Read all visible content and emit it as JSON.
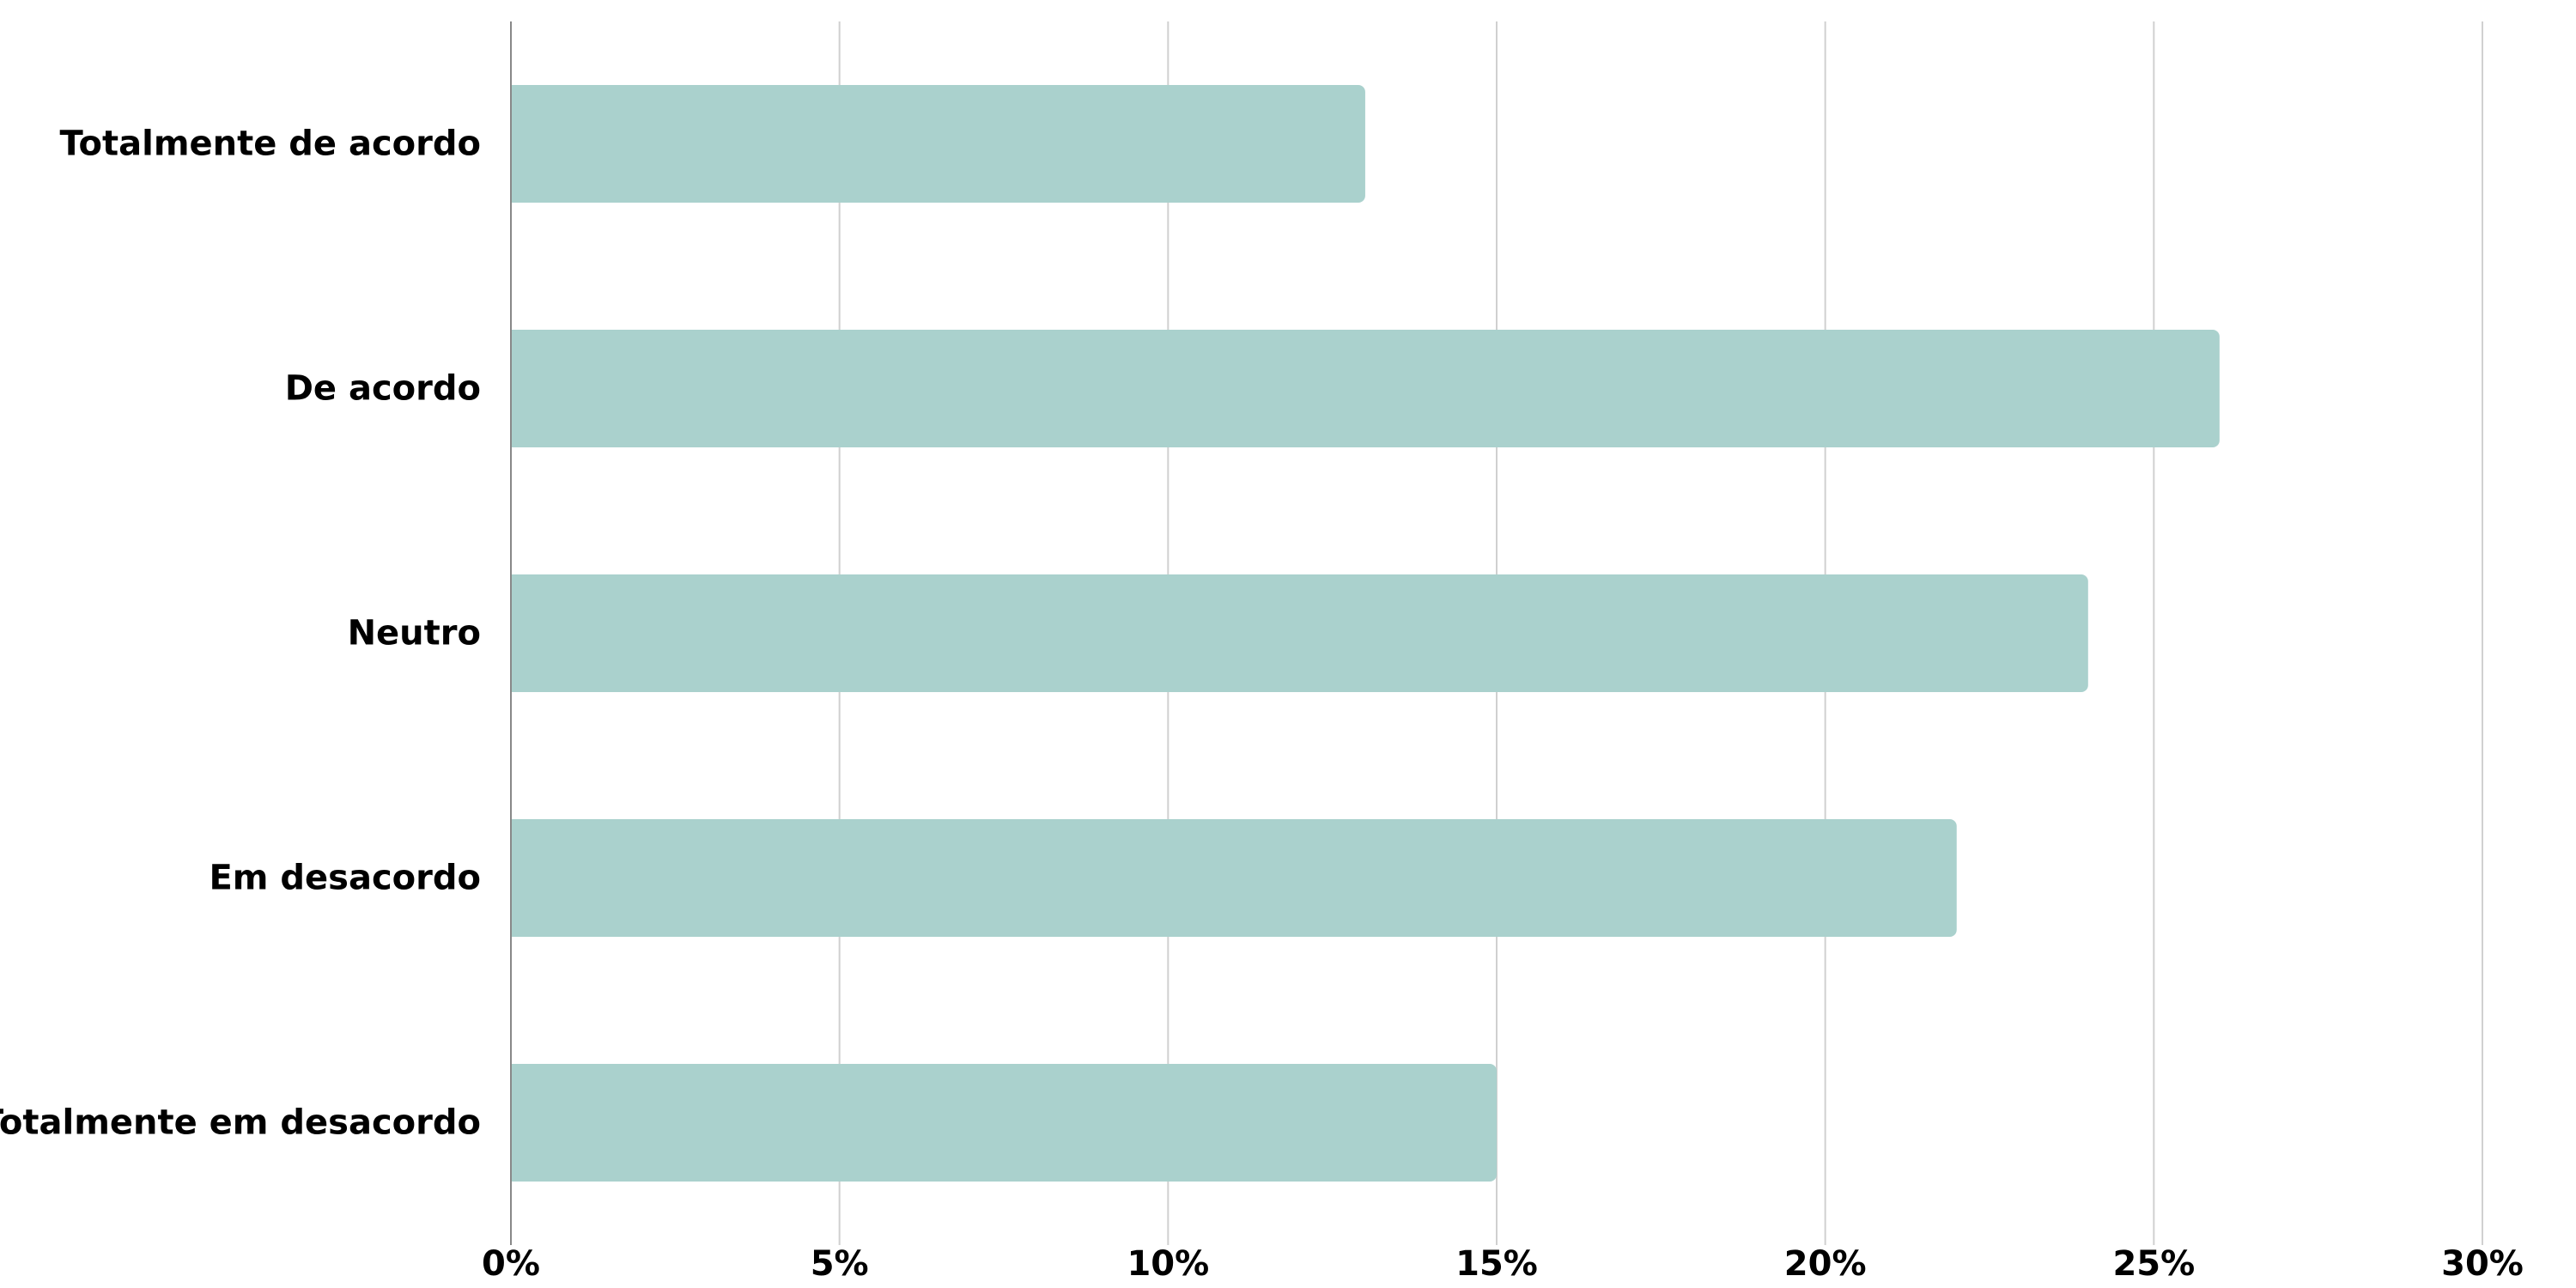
{
  "chart_data": {
    "type": "bar",
    "orientation": "horizontal",
    "categories": [
      "Totalmente de acordo",
      "De acordo",
      "Neutro",
      "Em desacordo",
      "Totalmente em desacordo"
    ],
    "values": [
      13,
      26,
      24,
      22,
      15
    ],
    "value_unit": "%",
    "xlim": [
      0,
      30
    ],
    "x_ticks": [
      0,
      5,
      10,
      15,
      20,
      25,
      30
    ],
    "x_tick_labels": [
      "0%",
      "5%",
      "10%",
      "15%",
      "20%",
      "25%",
      "30%"
    ],
    "title": "",
    "xlabel": "",
    "ylabel": "",
    "grid": "vertical",
    "legend": "none"
  },
  "colors": {
    "bar": "#aad1cd",
    "grid": "#d0d0d0",
    "axis": "#888888",
    "text": "#000000",
    "background": "#ffffff"
  }
}
